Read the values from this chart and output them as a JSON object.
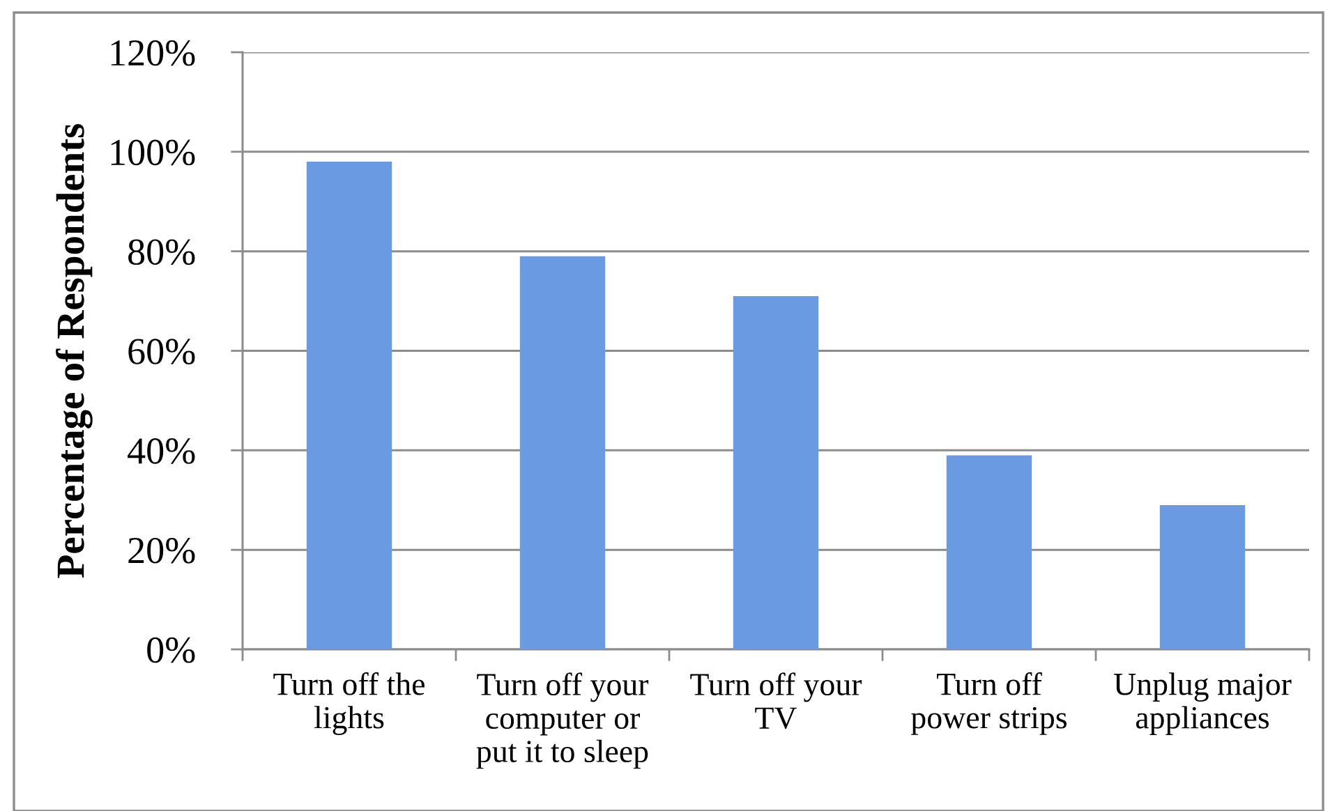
{
  "chart_data": {
    "type": "bar",
    "ylabel": "Percentage of Respondents",
    "categories": [
      "Turn off the\nlights",
      "Turn off your\ncomputer or\nput it to sleep",
      "Turn off your\nTV",
      "Turn off\npower strips",
      "Unplug major\nappliances"
    ],
    "values": [
      98,
      79,
      71,
      39,
      29
    ],
    "color": "#6a9be2",
    "ylim": [
      0,
      120
    ],
    "yticks": [
      {
        "value": 0,
        "label": "0%"
      },
      {
        "value": 20,
        "label": "20%"
      },
      {
        "value": 40,
        "label": "40%"
      },
      {
        "value": 60,
        "label": "60%"
      },
      {
        "value": 80,
        "label": "80%"
      },
      {
        "value": 100,
        "label": "100%"
      },
      {
        "value": 120,
        "label": "120%"
      }
    ],
    "grid": "y",
    "legend": false
  }
}
